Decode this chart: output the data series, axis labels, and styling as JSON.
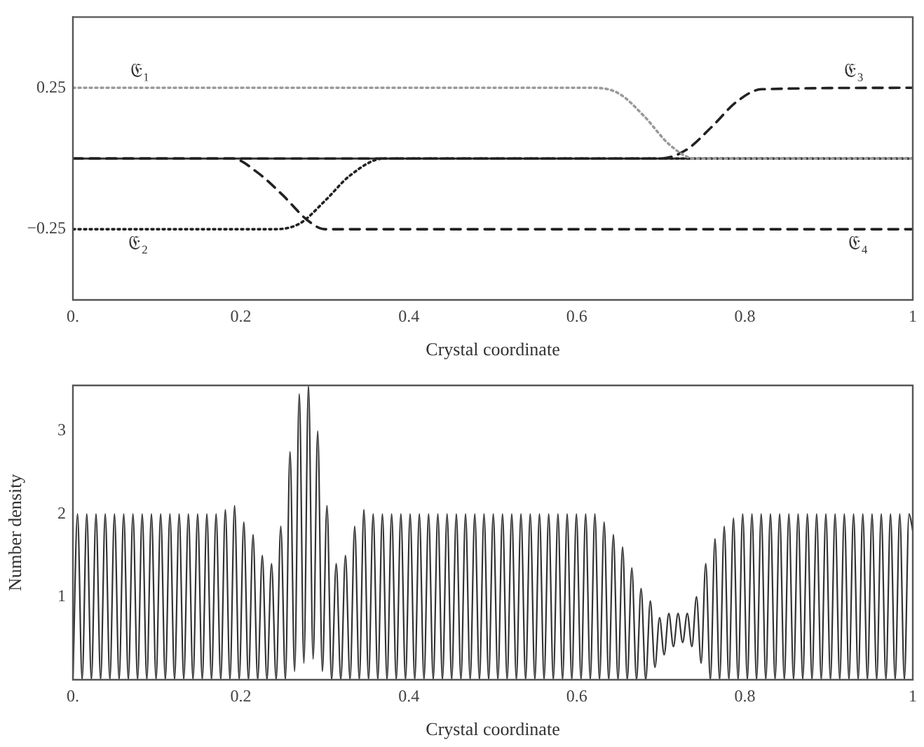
{
  "chart_data": [
    {
      "type": "line",
      "xlabel": "Crystal coordinate",
      "xlim": [
        0,
        1
      ],
      "ylim": [
        -0.5,
        0.5
      ],
      "marker": "none",
      "xticks": [
        {
          "value": 0,
          "label": "0."
        },
        0.2,
        0.4,
        0.6,
        0.8,
        1
      ],
      "yticks": [
        {
          "value": -0.25,
          "label": "−0.25"
        },
        0.25
      ],
      "series": [
        {
          "color": "#9a9a9a",
          "line_style": "dotted",
          "x": [
            0,
            0.62,
            0.65,
            0.68,
            0.71,
            0.74,
            1
          ],
          "values": [
            0.25,
            0.25,
            0.23,
            0.15,
            0.05,
            0,
            0
          ]
        },
        {
          "color": "#222222",
          "line_style": "dotted",
          "x": [
            0,
            0.24,
            0.27,
            0.3,
            0.33,
            0.37,
            1
          ],
          "values": [
            -0.25,
            -0.25,
            -0.23,
            -0.15,
            -0.06,
            0,
            0
          ]
        },
        {
          "color": "#222222",
          "line_style": "dashed",
          "x": [
            0,
            0.7,
            0.73,
            0.76,
            0.79,
            0.82,
            1
          ],
          "values": [
            0,
            0,
            0.03,
            0.11,
            0.2,
            0.245,
            0.25
          ]
        },
        {
          "color": "#222222",
          "line_style": "dashed",
          "x": [
            0,
            0.19,
            0.22,
            0.25,
            0.28,
            0.3,
            1
          ],
          "values": [
            0,
            0,
            -0.05,
            -0.13,
            -0.22,
            -0.25,
            -0.25
          ]
        }
      ],
      "ref_lines": [
        {
          "axis": "y",
          "value": 0,
          "color": "#333333"
        }
      ],
      "annotations": [
        {
          "text": "𝔈₁",
          "x": 0.08,
          "y": 0.25
        },
        {
          "text": "𝔈₂",
          "x": 0.078,
          "y": -0.25
        },
        {
          "text": "𝔈₃",
          "x": 0.93,
          "y": 0.25
        },
        {
          "text": "𝔈₄",
          "x": 0.935,
          "y": -0.25
        }
      ]
    },
    {
      "type": "line",
      "xlabel": "Crystal coordinate",
      "ylabel": "Number density",
      "xlim": [
        0,
        1
      ],
      "ylim": [
        0,
        3.55
      ],
      "marker": "none",
      "xticks": [
        {
          "value": 0,
          "label": "0."
        },
        0.2,
        0.4,
        0.6,
        0.8,
        1
      ],
      "yticks": [
        1,
        2,
        3
      ],
      "series": [
        {
          "color": "#333333",
          "line_style": "solid",
          "x": [
            0,
            0.0055,
            0.011,
            0.0165,
            0.022,
            0.0275,
            0.033,
            0.0385,
            0.044,
            0.0495,
            0.055,
            0.0605,
            0.066,
            0.0715,
            0.077,
            0.0825,
            0.088,
            0.0935,
            0.099,
            0.1045,
            0.11,
            0.1155,
            0.121,
            0.1265,
            0.132,
            0.1375,
            0.143,
            0.1485,
            0.154,
            0.1595,
            0.165,
            0.1705,
            0.176,
            0.1815,
            0.187,
            0.1925,
            0.198,
            0.2035,
            0.209,
            0.2145,
            0.22,
            0.2255,
            0.231,
            0.2365,
            0.242,
            0.2475,
            0.253,
            0.2585,
            0.264,
            0.2695,
            0.275,
            0.2805,
            0.286,
            0.2915,
            0.297,
            0.3025,
            0.308,
            0.3135,
            0.319,
            0.3245,
            0.33,
            0.3355,
            0.341,
            0.3465,
            0.352,
            0.3575,
            0.363,
            0.3685,
            0.374,
            0.3795,
            0.385,
            0.3905,
            0.396,
            0.4015,
            0.407,
            0.4125,
            0.418,
            0.4235,
            0.429,
            0.4345,
            0.44,
            0.4455,
            0.451,
            0.4565,
            0.462,
            0.4675,
            0.473,
            0.4785,
            0.484,
            0.4895,
            0.495,
            0.5005,
            0.506,
            0.5115,
            0.517,
            0.5225,
            0.528,
            0.5335,
            0.539,
            0.5445,
            0.55,
            0.5555,
            0.561,
            0.5665,
            0.572,
            0.5775,
            0.583,
            0.5885,
            0.594,
            0.5995,
            0.605,
            0.6105,
            0.616,
            0.6215,
            0.627,
            0.6325,
            0.638,
            0.6435,
            0.649,
            0.6545,
            0.66,
            0.6655,
            0.671,
            0.6765,
            0.682,
            0.6875,
            0.693,
            0.6985,
            0.704,
            0.7095,
            0.715,
            0.7205,
            0.726,
            0.7315,
            0.737,
            0.7425,
            0.748,
            0.7535,
            0.759,
            0.7645,
            0.77,
            0.7755,
            0.781,
            0.7865,
            0.792,
            0.7975,
            0.803,
            0.8085,
            0.814,
            0.8195,
            0.825,
            0.8305,
            0.836,
            0.8415,
            0.847,
            0.8525,
            0.858,
            0.8635,
            0.869,
            0.8745,
            0.88,
            0.8855,
            0.891,
            0.8965,
            0.902,
            0.9075,
            0.913,
            0.9185,
            0.924,
            0.9295,
            0.935,
            0.9405,
            0.946,
            0.9515,
            0.957,
            0.9625,
            0.968,
            0.9735,
            0.979,
            0.9845,
            0.99,
            0.9955,
            1
          ],
          "values": [
            0,
            2,
            0,
            2,
            0,
            2,
            0,
            2,
            0,
            2,
            0,
            2,
            0,
            2,
            0,
            2,
            0,
            2,
            0,
            2,
            0,
            2,
            0,
            2,
            0,
            2,
            0,
            2,
            0,
            2,
            0,
            2,
            0,
            2.05,
            0,
            2.1,
            0,
            1.9,
            0,
            1.75,
            0,
            1.5,
            0,
            1.4,
            0,
            1.85,
            0,
            2.75,
            0.1,
            3.45,
            0.2,
            3.55,
            0.25,
            3,
            0.1,
            2.1,
            0,
            1.4,
            0,
            1.5,
            0,
            1.85,
            0,
            2.05,
            0,
            2,
            0,
            2,
            0,
            2,
            0,
            2,
            0,
            2,
            0,
            2,
            0,
            2,
            0,
            2,
            0,
            2,
            0,
            2,
            0,
            2,
            0,
            2,
            0,
            2,
            0,
            2,
            0,
            2,
            0,
            2,
            0,
            2,
            0,
            2,
            0,
            2,
            0,
            2,
            0,
            2,
            0,
            2,
            0,
            2,
            0,
            2,
            0,
            2,
            0,
            1.9,
            0,
            1.75,
            0,
            1.6,
            0,
            1.35,
            0,
            1.1,
            0,
            0.95,
            0.15,
            0.75,
            0.3,
            0.8,
            0.4,
            0.8,
            0.45,
            0.8,
            0.4,
            1,
            0.2,
            1.4,
            0,
            1.7,
            0,
            1.85,
            0,
            1.95,
            0,
            2,
            0,
            2,
            0,
            2,
            0,
            2,
            0,
            2,
            0,
            2,
            0,
            2,
            0,
            2,
            0,
            2,
            0,
            2,
            0,
            2,
            0,
            2,
            0,
            2,
            0,
            2,
            0,
            2,
            0,
            2,
            0,
            2,
            0,
            2,
            0,
            2,
            1.8
          ]
        }
      ]
    }
  ]
}
